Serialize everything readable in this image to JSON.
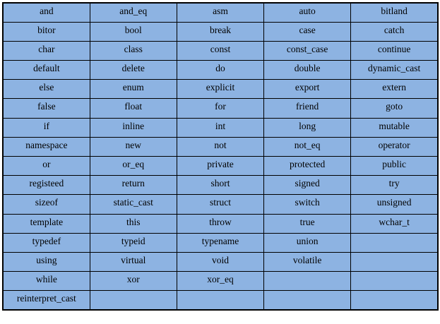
{
  "table": {
    "rows": [
      [
        "and",
        "and_eq",
        "asm",
        "auto",
        "bitland"
      ],
      [
        "bitor",
        "bool",
        "break",
        "case",
        "catch"
      ],
      [
        "char",
        "class",
        "const",
        "const_case",
        "continue"
      ],
      [
        "default",
        "delete",
        "do",
        "double",
        "dynamic_cast"
      ],
      [
        "else",
        "enum",
        "explicit",
        "export",
        "extern"
      ],
      [
        "false",
        "float",
        "for",
        "friend",
        "goto"
      ],
      [
        "if",
        "inline",
        "int",
        "long",
        "mutable"
      ],
      [
        "namespace",
        "new",
        "not",
        "not_eq",
        "operator"
      ],
      [
        "or",
        "or_eq",
        "private",
        "protected",
        "public"
      ],
      [
        "registeed",
        "return",
        "short",
        "signed",
        "try"
      ],
      [
        "sizeof",
        "static_cast",
        "struct",
        "switch",
        "unsigned"
      ],
      [
        "template",
        "this",
        "throw",
        "true",
        "wchar_t"
      ],
      [
        "typedef",
        "typeid",
        "typename",
        "union",
        ""
      ],
      [
        "using",
        "virtual",
        "void",
        "volatile",
        ""
      ],
      [
        "while",
        "xor",
        "xor_eq",
        "",
        ""
      ],
      [
        "reinterpret_cast",
        "",
        "",
        "",
        ""
      ]
    ],
    "colors": {
      "cell_background": "#8db3e2",
      "border": "#000000",
      "text": "#000000"
    }
  }
}
